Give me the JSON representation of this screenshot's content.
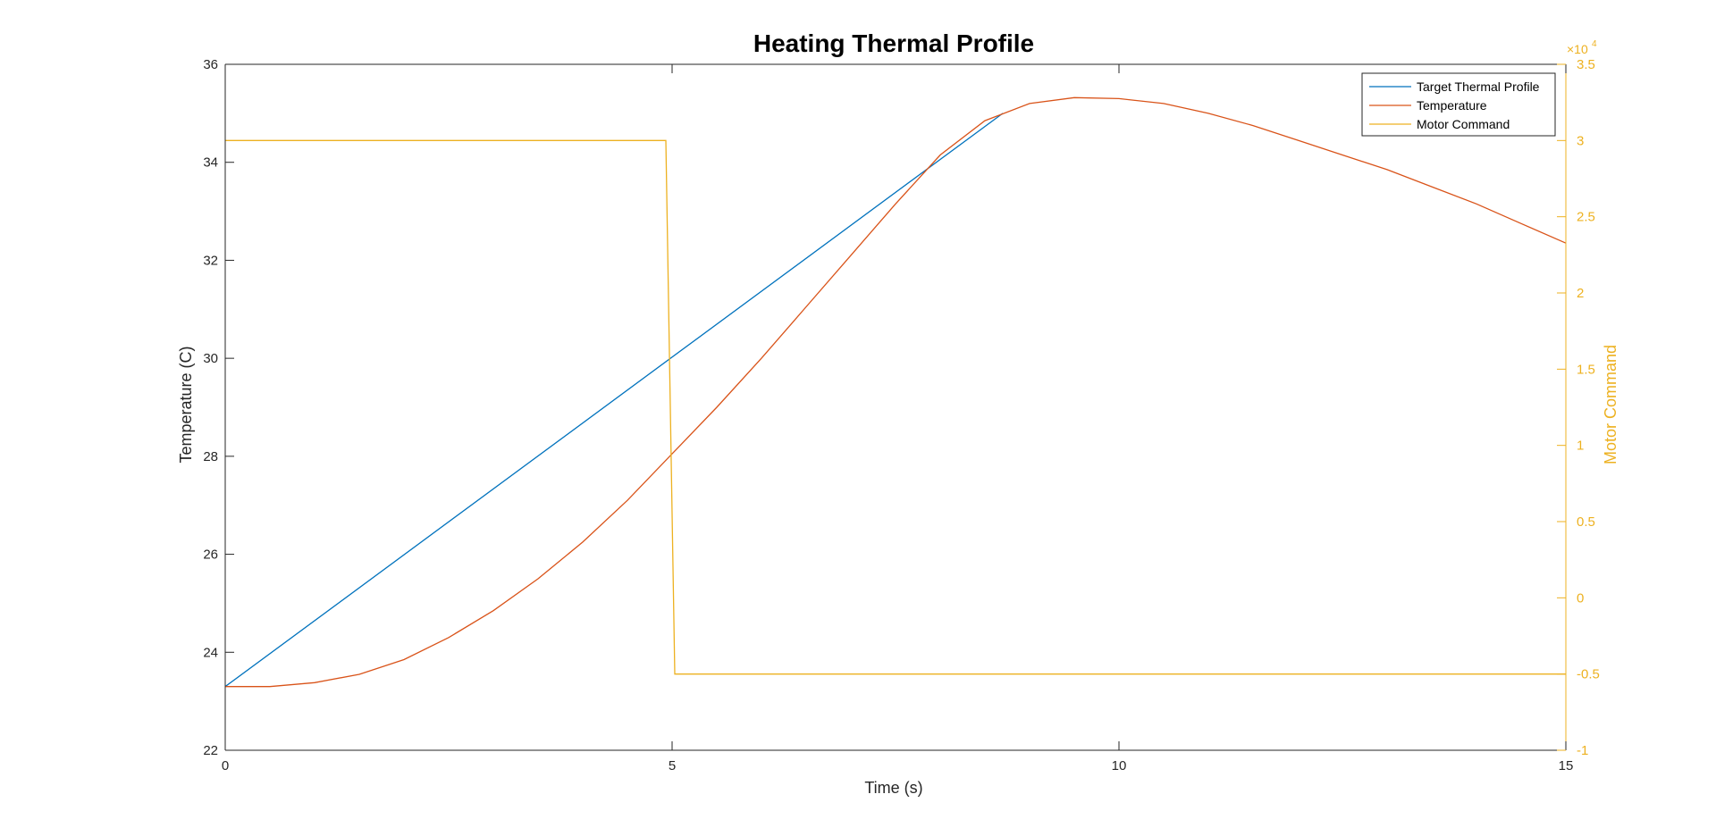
{
  "chart_data": {
    "type": "line",
    "title": "Heating Thermal Profile",
    "xlabel": "Time (s)",
    "ylabel": "Temperature (C)",
    "ylabel_right": "Motor Command",
    "xlim": [
      0,
      15
    ],
    "ylim": [
      22,
      36
    ],
    "ylim_right": [
      -1,
      3.5
    ],
    "right_axis_exponent_base": "×10",
    "right_axis_exponent_power": "4",
    "x_ticks": [
      "0",
      "5",
      "10",
      "15"
    ],
    "y_ticks": [
      "22",
      "24",
      "26",
      "28",
      "30",
      "32",
      "34",
      "36"
    ],
    "y_ticks_right": [
      "-1",
      "-0.5",
      "0",
      "0.5",
      "1",
      "1.5",
      "2",
      "2.5",
      "3",
      "3.5"
    ],
    "legend_position": "top-right",
    "colors": {
      "target": "#0072BD",
      "temperature": "#D95319",
      "motor": "#EDB120",
      "axis": "#262626"
    },
    "series": [
      {
        "name": "Target Thermal Profile",
        "axis": "left",
        "color": "#0072BD",
        "x": [
          0,
          8.7
        ],
        "y": [
          23.3,
          35.0
        ]
      },
      {
        "name": "Temperature",
        "axis": "left",
        "color": "#D95319",
        "x": [
          0,
          0.5,
          1,
          1.5,
          2,
          2.5,
          3,
          3.5,
          4,
          4.5,
          5,
          5.5,
          6,
          6.5,
          7,
          7.5,
          8,
          8.5,
          9,
          9.5,
          10,
          10.5,
          11,
          11.5,
          12,
          12.5,
          13,
          13.5,
          14,
          14.5,
          15
        ],
        "y": [
          23.3,
          23.3,
          23.38,
          23.55,
          23.85,
          24.3,
          24.85,
          25.5,
          26.25,
          27.1,
          28.05,
          29.0,
          30.0,
          31.05,
          32.1,
          33.15,
          34.15,
          34.85,
          35.2,
          35.32,
          35.3,
          35.2,
          35.0,
          34.75,
          34.45,
          34.15,
          33.85,
          33.5,
          33.15,
          32.75,
          32.35
        ]
      },
      {
        "name": "Motor Command",
        "axis": "right",
        "color": "#EDB120",
        "x": [
          0,
          4.93,
          5.03,
          15
        ],
        "y": [
          3.0,
          3.0,
          -0.5,
          -0.5
        ]
      }
    ]
  }
}
